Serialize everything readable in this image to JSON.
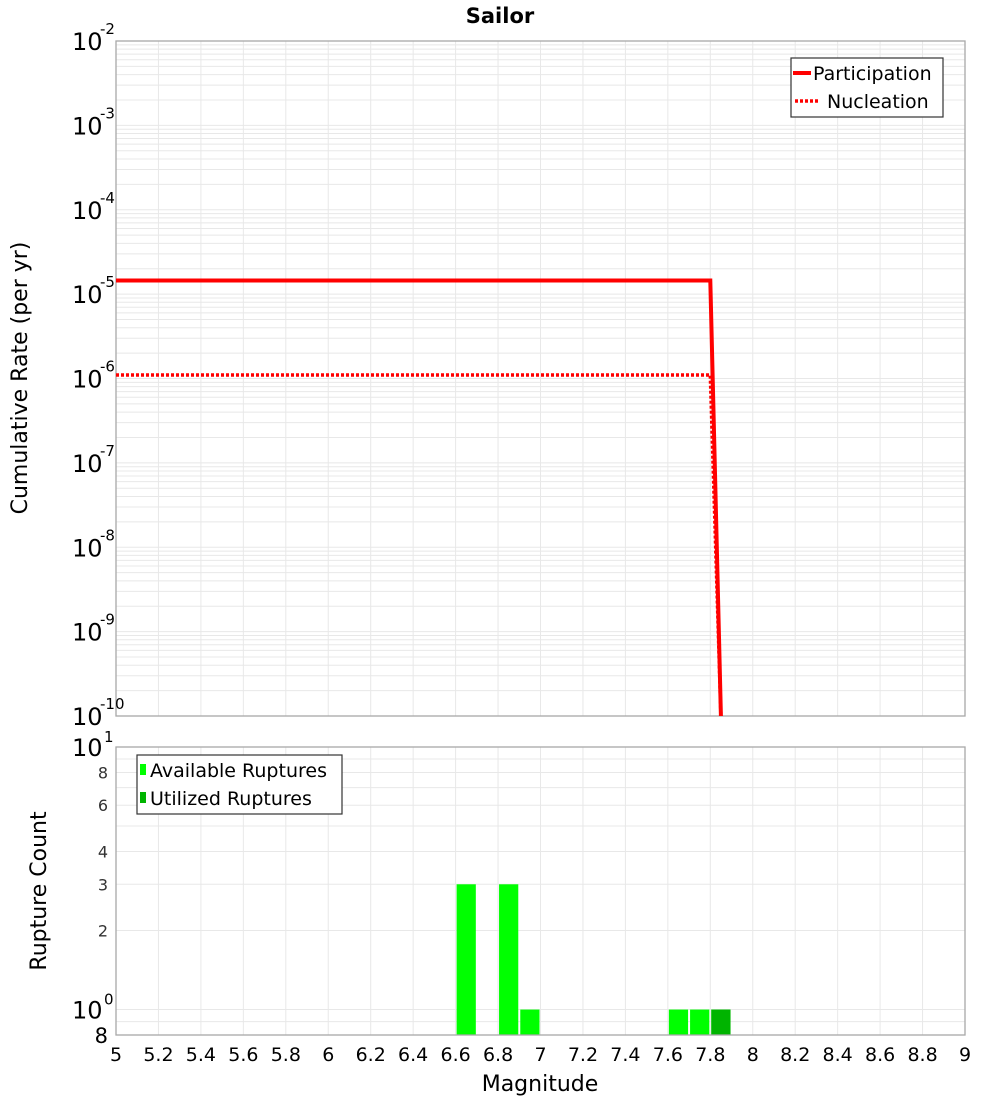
{
  "chart_data": [
    {
      "type": "line",
      "title": "Sailor",
      "xlabel": "Magnitude",
      "ylabel": "Cumulative Rate (per yr)",
      "yscale": "log",
      "xlim": [
        5,
        9
      ],
      "ylim": [
        1e-10,
        0.01
      ],
      "grid": true,
      "legend_position": "top-right",
      "y_ticks": [
        {
          "base": "10",
          "exp": "-2"
        },
        {
          "base": "10",
          "exp": "-3"
        },
        {
          "base": "10",
          "exp": "-4"
        },
        {
          "base": "10",
          "exp": "-5"
        },
        {
          "base": "10",
          "exp": "-6"
        },
        {
          "base": "10",
          "exp": "-7"
        },
        {
          "base": "10",
          "exp": "-8"
        },
        {
          "base": "10",
          "exp": "-9"
        },
        {
          "base": "10",
          "exp": "-10"
        }
      ],
      "series": [
        {
          "name": "Participation",
          "style": "solid",
          "color": "#ff0000",
          "x": [
            5.0,
            7.8,
            7.85
          ],
          "y": [
            1.45e-05,
            1.45e-05,
            1e-10
          ]
        },
        {
          "name": "Nucleation",
          "style": "dotted",
          "color": "#ff0000",
          "x": [
            5.0,
            7.8,
            7.85
          ],
          "y": [
            1.1e-06,
            1.1e-06,
            1e-10
          ]
        }
      ]
    },
    {
      "type": "bar",
      "xlabel": "Magnitude",
      "ylabel": "Rupture Count",
      "yscale": "log",
      "xlim": [
        5,
        9
      ],
      "ylim": [
        0.8,
        10
      ],
      "grid": true,
      "legend_position": "top-left",
      "x_ticks": [
        "5",
        "5.2",
        "5.4",
        "5.6",
        "5.8",
        "6",
        "6.2",
        "6.4",
        "6.6",
        "6.8",
        "7",
        "7.2",
        "7.4",
        "7.6",
        "7.8",
        "8",
        "8.2",
        "8.4",
        "8.6",
        "8.8",
        "9"
      ],
      "y_ticks_major": [
        {
          "base": "10",
          "exp": "1",
          "value": 10
        },
        {
          "base": "10",
          "exp": "0",
          "value": 1
        }
      ],
      "y_ticks_minor": [
        {
          "label": "8",
          "value": 8
        },
        {
          "label": "6",
          "value": 6
        },
        {
          "label": "4",
          "value": 4
        },
        {
          "label": "3",
          "value": 3
        },
        {
          "label": "2",
          "value": 2
        }
      ],
      "y_bottom_label": "8",
      "bin_width": 0.1,
      "series": [
        {
          "name": "Available Ruptures",
          "color": "#00ff00",
          "x": [
            6.65,
            6.85,
            6.95,
            7.65,
            7.75,
            7.85
          ],
          "values": [
            3,
            3,
            1,
            1,
            1,
            1
          ]
        },
        {
          "name": "Utilized Ruptures",
          "color": "#00b400",
          "x": [
            7.85
          ],
          "values": [
            1
          ]
        }
      ]
    }
  ],
  "labels": {
    "title": "Sailor",
    "top_ylabel": "Cumulative Rate (per yr)",
    "bottom_ylabel": "Rupture Count",
    "xlabel": "Magnitude",
    "legend_top": [
      "Participation",
      "Nucleation"
    ],
    "legend_bottom": [
      "Available Ruptures",
      "Utilized Ruptures"
    ]
  },
  "colors": {
    "line": "#ff0000",
    "available": "#00ff00",
    "utilized": "#00b400",
    "grid": "#e8e8e8",
    "axis": "#a0a0a0"
  }
}
